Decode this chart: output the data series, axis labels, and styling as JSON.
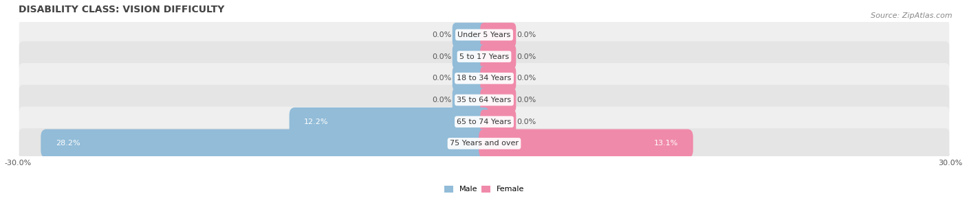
{
  "title": "DISABILITY CLASS: VISION DIFFICULTY",
  "source": "Source: ZipAtlas.com",
  "categories": [
    "Under 5 Years",
    "5 to 17 Years",
    "18 to 34 Years",
    "35 to 64 Years",
    "65 to 74 Years",
    "75 Years and over"
  ],
  "male_values": [
    0.0,
    0.0,
    0.0,
    0.0,
    12.2,
    28.2
  ],
  "female_values": [
    0.0,
    0.0,
    0.0,
    0.0,
    0.0,
    13.1
  ],
  "male_color": "#92bcd8",
  "female_color": "#f08aaa",
  "row_bg_odd": "#efefef",
  "row_bg_even": "#e5e5e5",
  "xlim": 30.0,
  "title_fontsize": 10,
  "source_fontsize": 8,
  "cat_fontsize": 8,
  "val_fontsize": 8,
  "bar_height": 0.62,
  "stub_size": 1.8,
  "background_color": "#ffffff",
  "text_color": "#555555",
  "white_label_threshold": 2.0
}
